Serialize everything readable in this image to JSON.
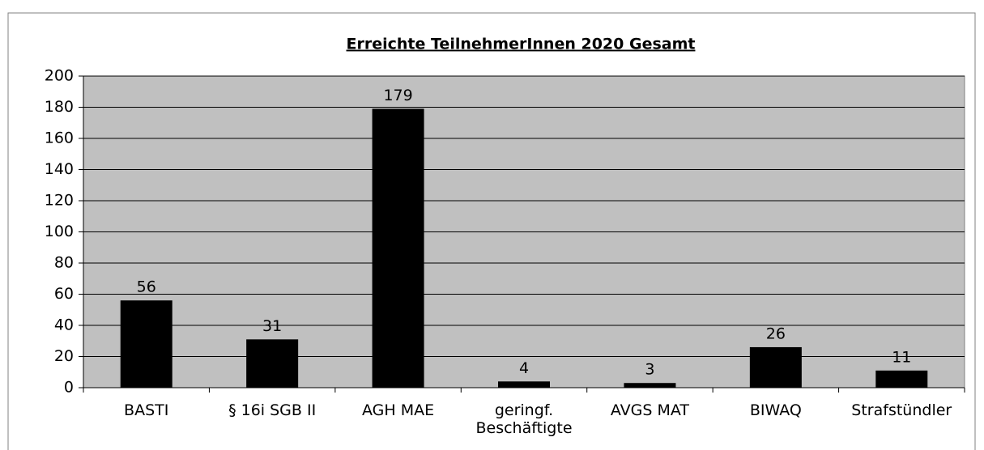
{
  "chart_data": {
    "type": "bar",
    "title": "Erreichte TeilnehmerInnen 2020 Gesamt",
    "categories": [
      "BASTI",
      "§ 16i SGB II",
      "AGH MAE",
      "geringf. Beschäftigte",
      "AVGS MAT",
      "BIWAQ",
      "Strafstündler"
    ],
    "values": [
      56,
      31,
      179,
      4,
      3,
      26,
      11
    ],
    "color": "#000000",
    "ylim": [
      0,
      200
    ],
    "yticks": [
      0,
      20,
      40,
      60,
      80,
      100,
      120,
      140,
      160,
      180,
      200
    ],
    "grid": true
  }
}
